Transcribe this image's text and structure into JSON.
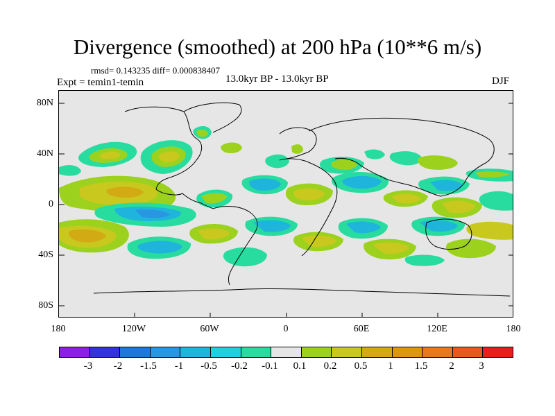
{
  "title": "Divergence (smoothed) at 200 hPa (10**6 m/s)",
  "stats": "rmsd= 0.143235  diff= 0.000838407",
  "left_label": "Expt = temin1-temin",
  "center_label": "13.0kyr BP - 13.0kyr BP",
  "right_label": "DJF",
  "axes": {
    "lat_labels": [
      "80N",
      "40N",
      "0",
      "40S",
      "80S"
    ],
    "lon_labels": [
      "180",
      "120W",
      "60W",
      "0",
      "60E",
      "120E",
      "180"
    ]
  },
  "colorbar": {
    "labels": [
      "-3",
      "-2",
      "-1.5",
      "-1",
      "-0.5",
      "-0.2",
      "-0.1",
      "0.1",
      "0.2",
      "0.5",
      "1",
      "1.5",
      "2",
      "3"
    ],
    "colors": [
      "#8c1ee8",
      "#3232e0",
      "#1e78d8",
      "#2896e0",
      "#1eb4dc",
      "#1ed2dc",
      "#28dca0",
      "#e6e6e6",
      "#9cd21e",
      "#c8c81e",
      "#d2aa14",
      "#dc9610",
      "#e6781e",
      "#e65a1e",
      "#e61e1e"
    ]
  },
  "map_fill_colors": {
    "background": "#e6e6e6",
    "neg_strong": "#1eb4dc",
    "neg": "#28dca0",
    "pos": "#9cd21e",
    "pos_strong": "#c8c81e",
    "pos_orange": "#d2aa14"
  }
}
